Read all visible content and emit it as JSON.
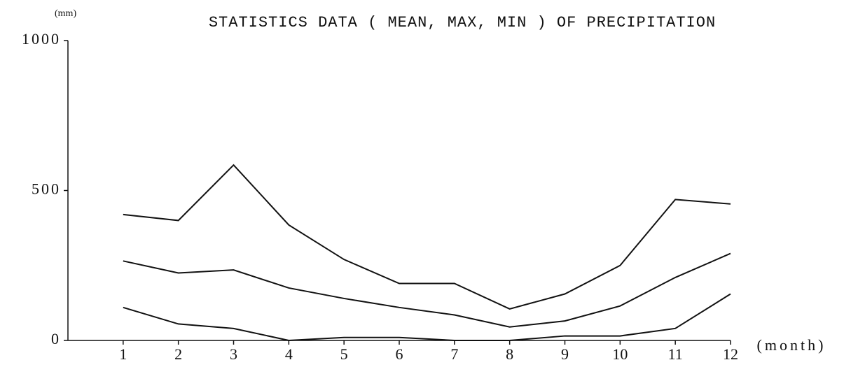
{
  "chart_data": {
    "type": "line",
    "title": "STATISTICS DATA ( MEAN, MAX, MIN ) OF PRECIPITATION",
    "y_unit": "(mm)",
    "x_label": "(month)",
    "x": [
      1,
      2,
      3,
      4,
      5,
      6,
      7,
      8,
      9,
      10,
      11,
      12
    ],
    "series": [
      {
        "color": "#111111",
        "values": [
          420,
          400,
          585,
          385,
          270,
          190,
          190,
          105,
          155,
          250,
          470,
          455
        ]
      },
      {
        "color": "#111111",
        "values": [
          265,
          225,
          235,
          175,
          140,
          110,
          85,
          45,
          65,
          115,
          210,
          290
        ]
      },
      {
        "color": "#111111",
        "values": [
          110,
          55,
          40,
          0,
          10,
          10,
          0,
          0,
          15,
          15,
          40,
          155
        ]
      }
    ],
    "xlim": [
      0,
      12
    ],
    "xticks": [
      1,
      2,
      3,
      4,
      5,
      6,
      7,
      8,
      9,
      10,
      11,
      12
    ],
    "ylim": [
      0,
      1000
    ],
    "yticks": [
      0,
      500,
      1000
    ],
    "grid": false
  }
}
